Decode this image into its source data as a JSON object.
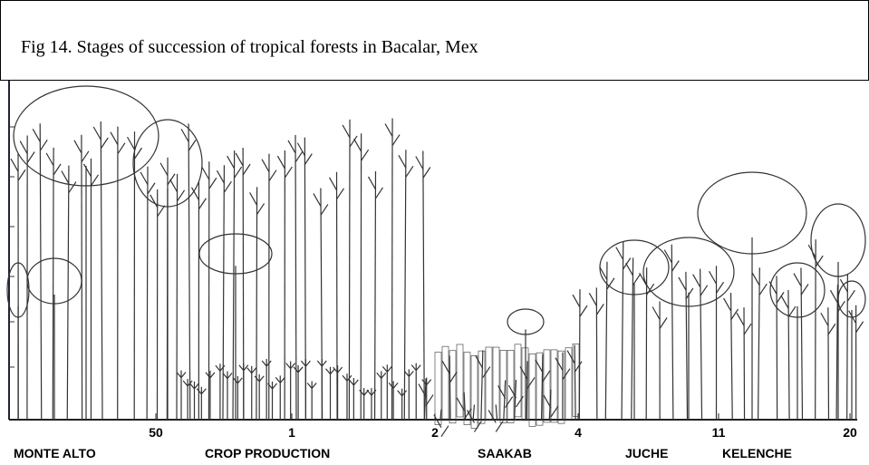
{
  "caption": "Fig 14. Stages of succession of tropical forests in Bacalar, Mex",
  "axis_numbers": [
    50,
    1,
    2,
    4,
    11,
    20
  ],
  "stages": [
    "MONTE ALTO",
    "CROP PRODUCTION",
    "SAAKAB",
    "JUCHE",
    "KELENCHE"
  ]
}
